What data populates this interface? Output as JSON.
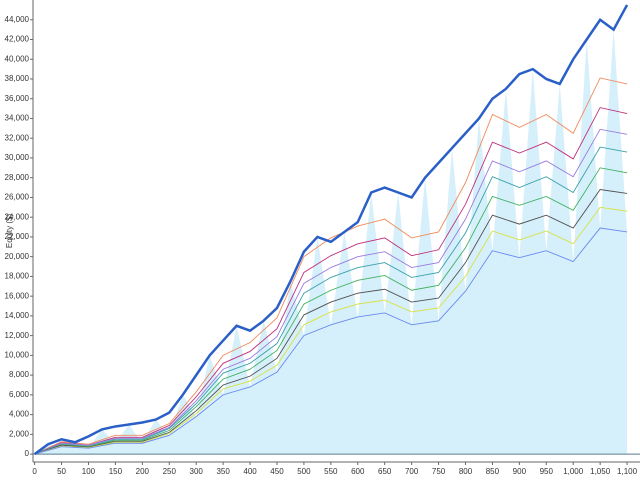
{
  "chart_data": {
    "type": "line",
    "y_label": "Equity ($)",
    "xlim": [
      -3,
      1124
    ],
    "ylim": [
      -800,
      46000
    ],
    "xticks": [
      0,
      50,
      100,
      150,
      200,
      250,
      300,
      350,
      400,
      450,
      500,
      550,
      600,
      650,
      700,
      750,
      800,
      850,
      900,
      950,
      {
        "value": 1000,
        "label": "1,000"
      },
      {
        "value": 1050,
        "label": "1,050"
      },
      {
        "value": 1100,
        "label": "1,100"
      }
    ],
    "yticks": [
      0,
      {
        "value": 2000,
        "label": "2,000"
      },
      {
        "value": 4000,
        "label": "4,000"
      },
      {
        "value": 6000,
        "label": "6,000"
      },
      {
        "value": 8000,
        "label": "8,000"
      },
      {
        "value": 10000,
        "label": "10,000"
      },
      {
        "value": 12000,
        "label": "12,000"
      },
      {
        "value": 14000,
        "label": "14,000"
      },
      {
        "value": 16000,
        "label": "16,000"
      },
      {
        "value": 18000,
        "label": "18,000"
      },
      {
        "value": 20000,
        "label": "20,000"
      },
      {
        "value": 22000,
        "label": "22,000"
      },
      {
        "value": 24000,
        "label": "24,000"
      },
      {
        "value": 26000,
        "label": "26,000"
      },
      {
        "value": 28000,
        "label": "28,000"
      },
      {
        "value": 30000,
        "label": "30,000"
      },
      {
        "value": 32000,
        "label": "32,000"
      },
      {
        "value": 34000,
        "label": "34,000"
      },
      {
        "value": 36000,
        "label": "36,000"
      },
      {
        "value": 38000,
        "label": "38,000"
      },
      {
        "value": 40000,
        "label": "40,000"
      },
      {
        "value": 42000,
        "label": "42,000"
      },
      {
        "value": 44000,
        "label": "44,000"
      }
    ],
    "area_color": "#d6f0fb",
    "series": [
      {
        "color": "#f08a5a",
        "x": [
          0,
          50,
          100,
          150,
          200,
          250,
          300,
          350,
          400,
          450,
          500,
          550,
          600,
          650,
          700,
          750,
          800,
          850,
          900,
          950,
          1000,
          1050,
          1100
        ],
        "values": [
          0,
          1250,
          1000,
          1900,
          1900,
          3100,
          6300,
          10000,
          11300,
          13800,
          20000,
          21900,
          23100,
          23800,
          21900,
          22500,
          27500,
          34400,
          33100,
          34400,
          32500,
          38100,
          37500
        ]
      },
      {
        "color": "#c0307a",
        "x": [
          0,
          50,
          100,
          150,
          200,
          250,
          300,
          350,
          400,
          450,
          500,
          550,
          600,
          650,
          700,
          750,
          800,
          850,
          900,
          950,
          1000,
          1050,
          1100
        ],
        "values": [
          0,
          1150,
          900,
          1700,
          1700,
          2900,
          5800,
          9200,
          10400,
          12700,
          18400,
          20100,
          21300,
          21900,
          20100,
          20700,
          25300,
          31600,
          30500,
          31600,
          29900,
          35100,
          34500
        ]
      },
      {
        "color": "#9a7ae0",
        "x": [
          0,
          50,
          100,
          150,
          200,
          250,
          300,
          350,
          400,
          450,
          500,
          550,
          600,
          650,
          700,
          750,
          800,
          850,
          900,
          950,
          1000,
          1050,
          1100
        ],
        "values": [
          0,
          1100,
          900,
          1600,
          1600,
          2700,
          5400,
          8600,
          9700,
          11900,
          17300,
          18900,
          20000,
          20500,
          18900,
          19400,
          23800,
          29700,
          28600,
          29700,
          28100,
          32900,
          32400
        ]
      },
      {
        "color": "#3aa0a8",
        "x": [
          0,
          50,
          100,
          150,
          200,
          250,
          300,
          350,
          400,
          450,
          500,
          550,
          600,
          650,
          700,
          750,
          800,
          850,
          900,
          950,
          1000,
          1050,
          1100
        ],
        "values": [
          0,
          1000,
          800,
          1500,
          1500,
          2600,
          5100,
          8200,
          9200,
          11200,
          16300,
          17900,
          18900,
          19400,
          17900,
          18400,
          22400,
          28100,
          27000,
          28100,
          26500,
          31100,
          30600
        ]
      },
      {
        "color": "#40b060",
        "x": [
          0,
          50,
          100,
          150,
          200,
          250,
          300,
          350,
          400,
          450,
          500,
          550,
          600,
          650,
          700,
          750,
          800,
          850,
          900,
          950,
          1000,
          1050,
          1100
        ],
        "values": [
          0,
          950,
          750,
          1400,
          1400,
          2400,
          4800,
          7600,
          8600,
          10500,
          15200,
          16600,
          17600,
          18100,
          16600,
          17100,
          20900,
          26100,
          25200,
          26100,
          24700,
          29000,
          28500
        ]
      },
      {
        "color": "#505050",
        "x": [
          0,
          50,
          100,
          150,
          200,
          250,
          300,
          350,
          400,
          450,
          500,
          550,
          600,
          650,
          700,
          750,
          800,
          850,
          900,
          950,
          1000,
          1050,
          1100
        ],
        "values": [
          0,
          900,
          700,
          1300,
          1300,
          2200,
          4400,
          7000,
          7900,
          9700,
          14100,
          15400,
          16300,
          16700,
          15400,
          15800,
          19400,
          24200,
          23300,
          24200,
          22900,
          26800,
          26400
        ]
      },
      {
        "color": "#d8e040",
        "x": [
          0,
          50,
          100,
          150,
          200,
          250,
          300,
          350,
          400,
          450,
          500,
          550,
          600,
          650,
          700,
          750,
          800,
          850,
          900,
          950,
          1000,
          1050,
          1100
        ],
        "values": [
          0,
          800,
          650,
          1200,
          1200,
          2100,
          4100,
          6600,
          7400,
          9000,
          13100,
          14400,
          15200,
          15600,
          14400,
          14800,
          18000,
          22600,
          21700,
          22600,
          21300,
          25000,
          24600
        ]
      },
      {
        "color": "#6a8af0",
        "x": [
          0,
          50,
          100,
          150,
          200,
          250,
          300,
          350,
          400,
          450,
          500,
          550,
          600,
          650,
          700,
          750,
          800,
          850,
          900,
          950,
          1000,
          1050,
          1100
        ],
        "values": [
          0,
          750,
          600,
          1100,
          1100,
          1900,
          3800,
          6000,
          6800,
          8300,
          12000,
          13100,
          13900,
          14300,
          13100,
          13500,
          16500,
          20600,
          19900,
          20600,
          19500,
          22900,
          22500
        ]
      },
      {
        "color": "#2a5fc8",
        "x": [
          0,
          25,
          50,
          75,
          100,
          125,
          150,
          175,
          200,
          225,
          250,
          275,
          300,
          325,
          350,
          375,
          400,
          425,
          450,
          475,
          500,
          525,
          550,
          575,
          600,
          625,
          650,
          675,
          700,
          725,
          750,
          775,
          800,
          825,
          850,
          875,
          900,
          925,
          950,
          975,
          1000,
          1025,
          1050,
          1075,
          1100
        ],
        "values": [
          0,
          1000,
          1500,
          1200,
          1800,
          2500,
          2800,
          3000,
          3200,
          3500,
          4200,
          6000,
          8000,
          10000,
          11500,
          13000,
          12500,
          13500,
          14800,
          17500,
          20500,
          22000,
          21500,
          22500,
          23500,
          26500,
          27000,
          26500,
          26000,
          28000,
          29500,
          31000,
          32500,
          34000,
          36000,
          37000,
          38500,
          39000,
          38000,
          37500,
          40000,
          42000,
          44000,
          43000,
          45500
        ]
      }
    ]
  }
}
